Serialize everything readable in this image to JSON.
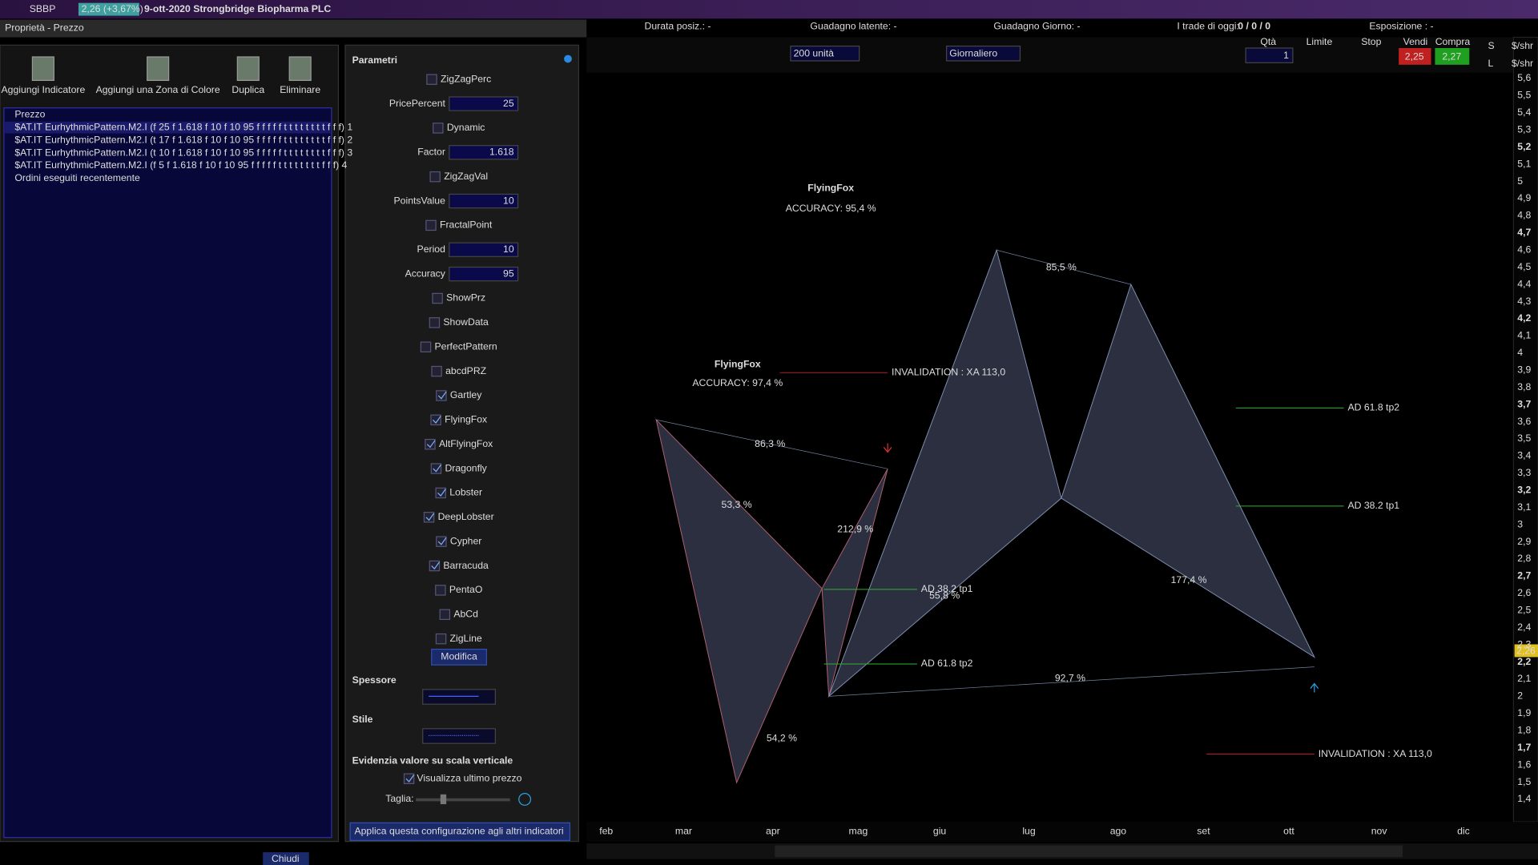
{
  "titlebar": {
    "symbol": "SBBP",
    "price": "2,26 (+3,67%)",
    "title": "9-ott-2020 Strongbridge Biopharma PLC"
  },
  "panel_title": "Proprietà - Prezzo",
  "toolbar": [
    "Aggiungi Indicatore",
    "Aggiungi una Zona di Colore",
    "Duplica",
    "Eliminare"
  ],
  "tree": [
    "Prezzo",
    "$AT.IT EurhythmicPattern.M2.I (f 25 f 1.618 f 10 f 10 95 f f f f f t t t t t t t t f f f) 1",
    "$AT.IT EurhythmicPattern.M2.I (t 17 f 1.618 f 10 f 10 95 f f f f f t t t t t t t t f f f) 2",
    "$AT.IT EurhythmicPattern.M2.I (t 10 f 1.618 f 10 f 10 95 f f f f f t t t t t t t t f f f) 3",
    "$AT.IT EurhythmicPattern.M2.I (f 5 f 1.618 f 10 f 10 95 f f f f f t t t t t t t t f f f) 4",
    "Ordini eseguiti recentemente"
  ],
  "params": {
    "title": "Parametri",
    "items": [
      {
        "label": "ZigZagPerc",
        "checked": false
      },
      {
        "label": "PricePercent",
        "value": 25
      },
      {
        "label": "Dynamic",
        "checked": false
      },
      {
        "label": "Factor",
        "value": 1.618
      },
      {
        "label": "ZigZagVal",
        "checked": false
      },
      {
        "label": "PointsValue",
        "value": 10
      },
      {
        "label": "FractalPoint",
        "checked": false
      },
      {
        "label": "Period",
        "value": 10
      },
      {
        "label": "Accuracy",
        "value": 95
      },
      {
        "label": "ShowPrz",
        "checked": false
      },
      {
        "label": "ShowData",
        "checked": false
      },
      {
        "label": "PerfectPattern",
        "checked": false
      },
      {
        "label": "abcdPRZ",
        "checked": false
      },
      {
        "label": "Gartley",
        "checked": true
      },
      {
        "label": "FlyingFox",
        "checked": true
      },
      {
        "label": "AltFlyingFox",
        "checked": true
      },
      {
        "label": "Dragonfly",
        "checked": true
      },
      {
        "label": "Lobster",
        "checked": true
      },
      {
        "label": "DeepLobster",
        "checked": true
      },
      {
        "label": "Cypher",
        "checked": true
      },
      {
        "label": "Barracuda",
        "checked": true
      },
      {
        "label": "PentaO",
        "checked": false
      },
      {
        "label": "AbCd",
        "checked": false
      },
      {
        "label": "ZigLine",
        "checked": false
      }
    ],
    "modify": "Modifica",
    "thickness": "Spessore",
    "style": "Stile",
    "highlight": "Evidenzia valore su scala verticale",
    "show_last": "Visualizza ultimo prezzo",
    "size": "Taglia:",
    "apply": "Applica questa configurazione agli altri indicatori"
  },
  "close": "Chiudi",
  "status": [
    "Durata posiz.: -",
    "Guadagno latente: -",
    "Guadagno Giorno: -",
    "I trade di oggi:",
    "0 / 0 / 0",
    "Esposizione : -"
  ],
  "chart_toolbar": {
    "units": "200 unità",
    "period": "Giornaliero",
    "qty_label": "Qtà",
    "qty": "1",
    "limit": "Limite",
    "stop": "Stop",
    "sell": "Vendi",
    "buy": "Compra",
    "bid": "2,25",
    "ask": "2,27",
    "s": "S",
    "l": "L",
    "shr1": "$/shr",
    "shr2": "$/shr"
  },
  "price_axis": [
    "5,6",
    "5,5",
    "5,4",
    "5,3",
    "5,2",
    "5,1",
    "5",
    "4,9",
    "4,8",
    "4,7",
    "4,6",
    "4,5",
    "4,4",
    "4,3",
    "4,2",
    "4,1",
    "4",
    "3,9",
    "3,8",
    "3,7",
    "3,6",
    "3,5",
    "3,4",
    "3,3",
    "3,2",
    "3,1",
    "3",
    "2,9",
    "2,8",
    "2,7",
    "2,6",
    "2,5",
    "2,4",
    "2,3",
    "2,2",
    "2,1",
    "2",
    "1,9",
    "1,8",
    "1,7",
    "1,6",
    "1,5",
    "1,4"
  ],
  "last_price": "2,26",
  "months": [
    "feb",
    "mar",
    "apr",
    "mag",
    "giu",
    "lug",
    "ago",
    "set",
    "ott",
    "nov",
    "dic"
  ],
  "annotations": [
    "FlyingFox",
    "ACCURACY: 95,4 %",
    "FlyingFox",
    "ACCURACY: 97,4 %",
    "INVALIDATION :  XA 113,0",
    "INVALIDATION :  XA 113,0",
    "86,3 %",
    "53,3 %",
    "212,9 %",
    "55,8 %",
    "85,5 %",
    "177,4 %",
    "92,7 %",
    "AD 61.8 tp2",
    "AD 38.2 tp1",
    "AD 38.2 tp1",
    "AD 61.8 tp2",
    "54,2 %"
  ]
}
